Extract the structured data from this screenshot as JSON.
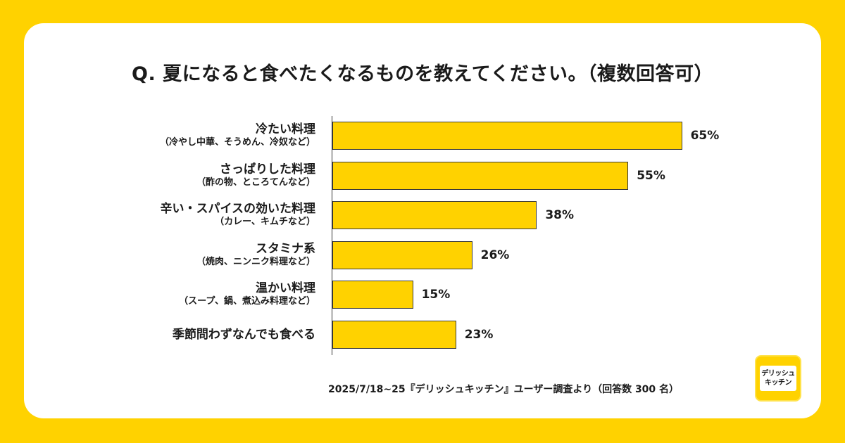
{
  "title": "Q. 夏になると食べたくなるものを教えてください。（複数回答可）",
  "footnote": "2025/7/18~25『デリッシュキッチン』ユーザー調査より（回答数 300 名）",
  "logo": {
    "line1": "デリッシュ",
    "line2": "キッチン"
  },
  "colors": {
    "bar": "#FFD200",
    "background": "#FFD200",
    "card": "#FFFFFF"
  },
  "chart_data": {
    "type": "bar",
    "orientation": "horizontal",
    "categories": [
      {
        "label": "冷たい料理",
        "sub": "（冷やし中華、そうめん、冷奴など）"
      },
      {
        "label": "さっぱりした料理",
        "sub": "（酢の物、ところてんなど）"
      },
      {
        "label": "辛い・スパイスの効いた料理",
        "sub": "（カレー、キムチなど）"
      },
      {
        "label": "スタミナ系",
        "sub": "（焼肉、ニンニク料理など）"
      },
      {
        "label": "温かい料理",
        "sub": "（スープ、鍋、煮込み料理など）"
      },
      {
        "label": "季節問わずなんでも食べる",
        "sub": ""
      }
    ],
    "values": [
      65,
      55,
      38,
      26,
      15,
      23
    ],
    "value_labels": [
      "65%",
      "55%",
      "38%",
      "26%",
      "15%",
      "23%"
    ],
    "unit": "%",
    "xlim": [
      0,
      100
    ],
    "grid": false,
    "legend": "none"
  }
}
